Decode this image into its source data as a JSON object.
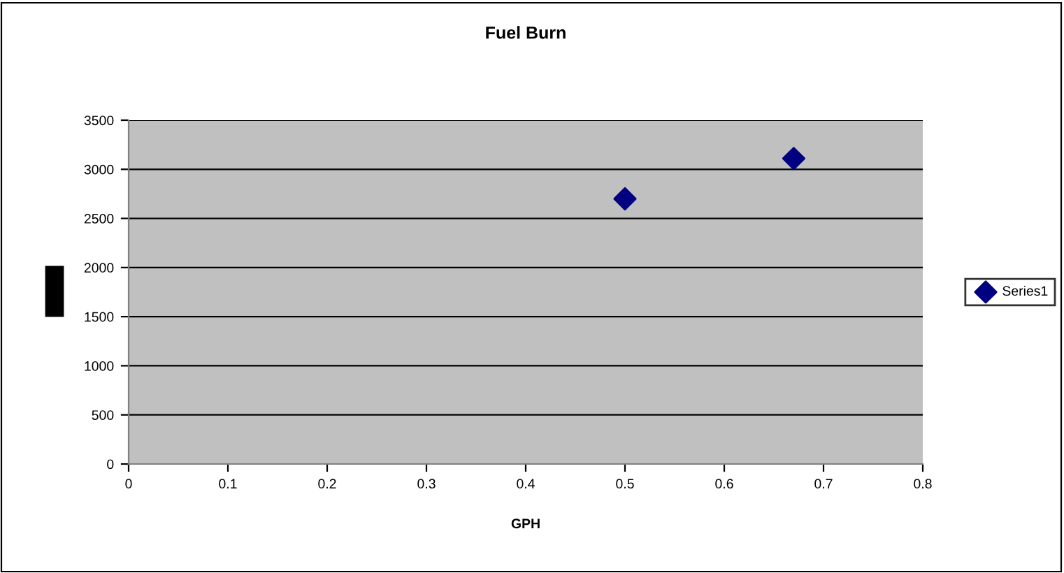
{
  "chart_data": {
    "type": "scatter",
    "title": "Fuel Burn",
    "xlabel": "GPH",
    "series": [
      {
        "name": "Series1",
        "color": "#000080",
        "x": [
          0.5,
          0.67
        ],
        "values": [
          2700,
          3110
        ]
      }
    ],
    "xlim": [
      0,
      0.8
    ],
    "xticks": [
      0,
      0.1,
      0.2,
      0.3,
      0.4,
      0.5,
      0.6,
      0.7,
      0.8
    ],
    "ylim": [
      0,
      3500
    ],
    "yticks": [
      0,
      500,
      1000,
      1500,
      2000,
      2500,
      3000,
      3500
    ],
    "grid": "y",
    "legend": "right",
    "marker": "diamond"
  }
}
